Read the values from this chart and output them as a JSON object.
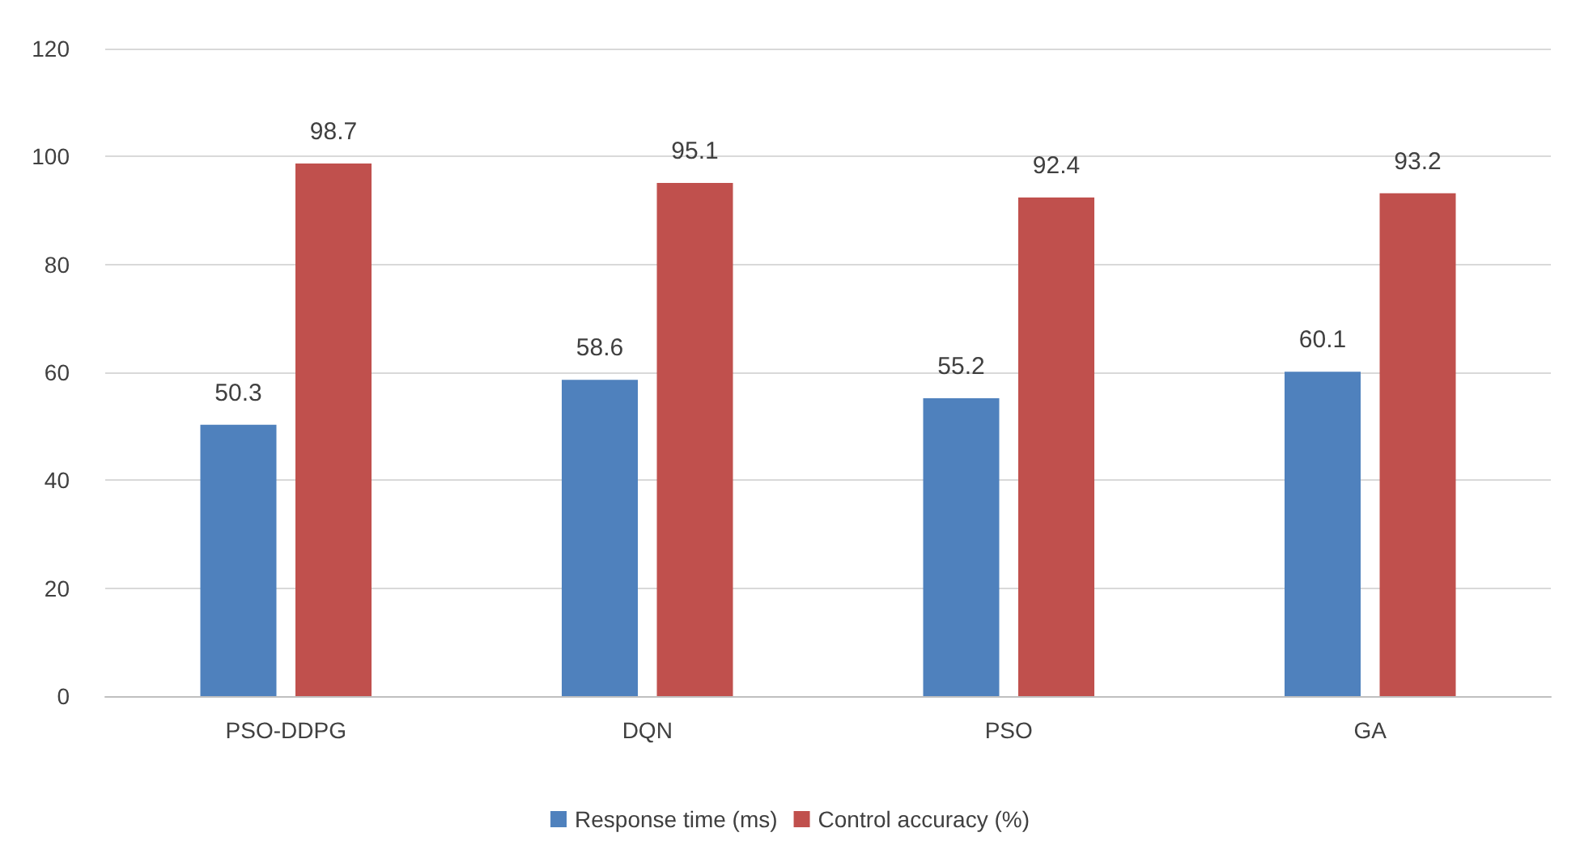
{
  "chart_data": {
    "type": "bar",
    "categories": [
      "PSO-DDPG",
      "DQN",
      "PSO",
      "GA"
    ],
    "series": [
      {
        "name": "Response time (ms)",
        "color": "#4f81bd",
        "values": [
          50.3,
          58.6,
          55.2,
          60.1
        ]
      },
      {
        "name": "Control accuracy (%)",
        "color": "#c0504d",
        "values": [
          98.7,
          95.1,
          92.4,
          93.2
        ]
      }
    ],
    "ylim": [
      0,
      120
    ],
    "yticks": [
      0,
      20,
      40,
      60,
      80,
      100,
      120
    ],
    "grid": "y",
    "legend": "bottom",
    "data_labels": true
  }
}
